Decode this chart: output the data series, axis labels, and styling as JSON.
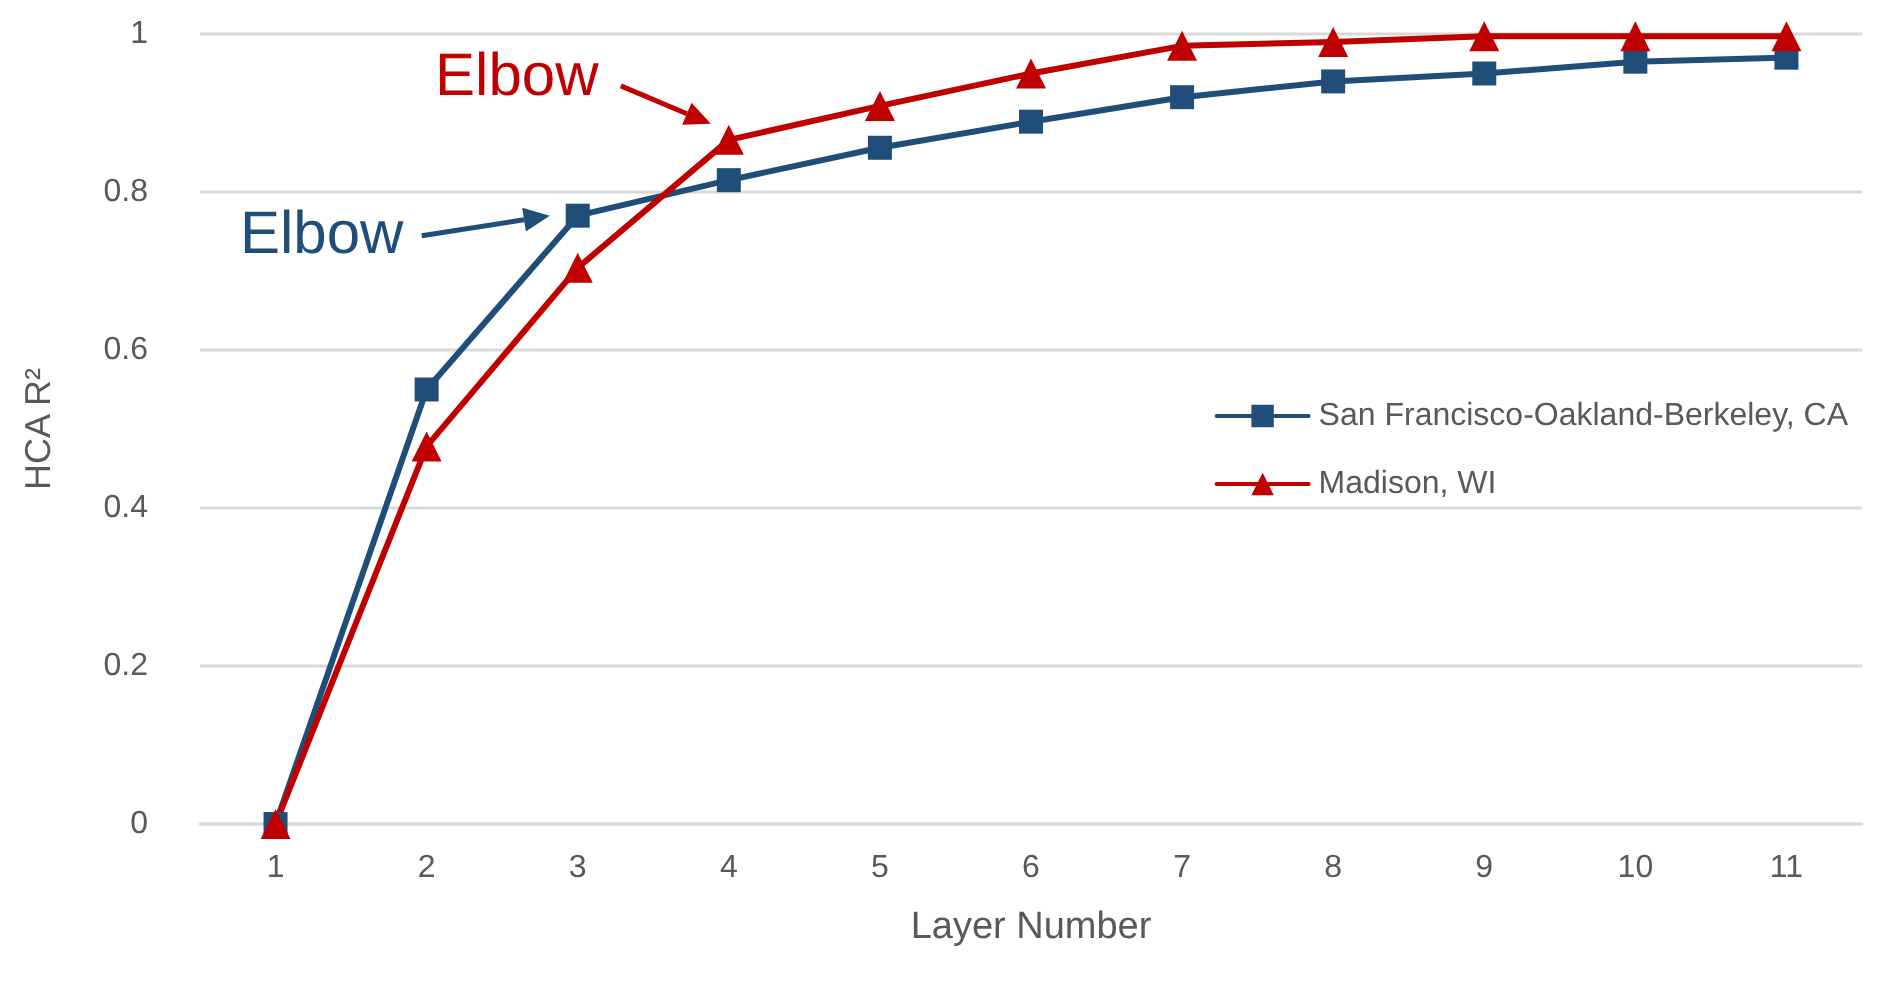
{
  "chart_data": {
    "type": "line",
    "xlabel": "Layer Number",
    "ylabel": "HCA R²",
    "categories": [
      "1",
      "2",
      "3",
      "4",
      "5",
      "6",
      "7",
      "8",
      "9",
      "10",
      "11"
    ],
    "series": [
      {
        "name": "San Francisco-Oakland-Berkeley, CA",
        "color": "#1f4e79",
        "marker": "square",
        "values": [
          0,
          0.55,
          0.77,
          0.815,
          0.856,
          0.889,
          0.92,
          0.94,
          0.95,
          0.965,
          0.97
        ]
      },
      {
        "name": "Madison, WI",
        "color": "#c00000",
        "marker": "triangle",
        "values": [
          0,
          0.478,
          0.704,
          0.866,
          0.909,
          0.95,
          0.985,
          0.99,
          0.997,
          0.997,
          0.997
        ]
      }
    ],
    "annotations": [
      {
        "text": "Elbow",
        "x": "3",
        "y": 0.77
      },
      {
        "text": "Elbow",
        "x": "4",
        "y": 0.866
      }
    ],
    "ylim": [
      0,
      1
    ],
    "yticks": [
      0,
      0.2,
      0.4,
      0.6,
      0.8,
      1
    ],
    "grid": "y",
    "legend": "right",
    "line_style": "solid"
  }
}
